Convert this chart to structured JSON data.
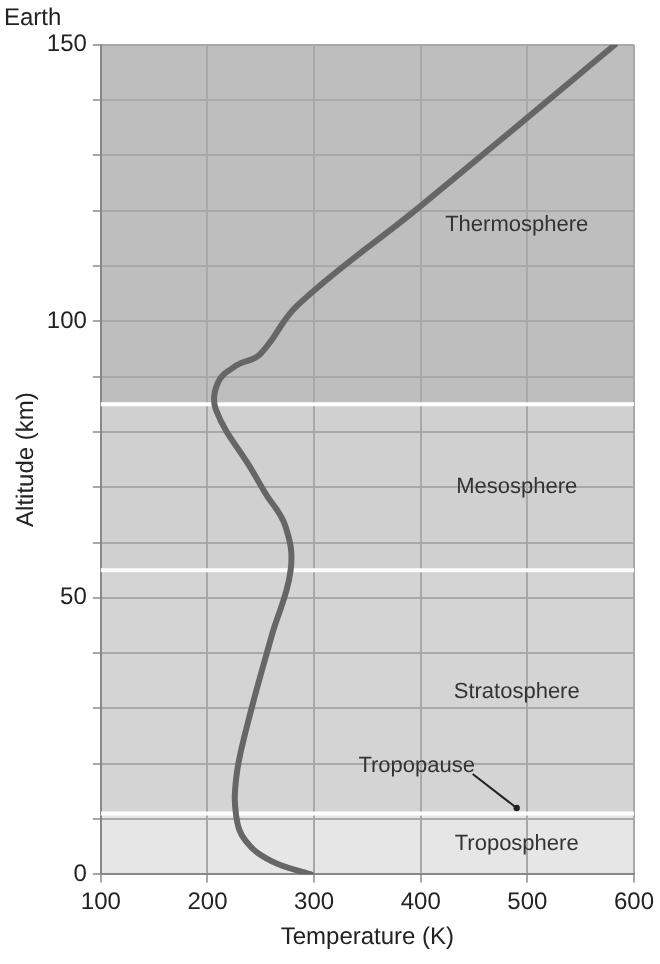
{
  "chart_data": {
    "type": "line",
    "title": "Earth",
    "xlabel": "Temperature (K)",
    "ylabel": "Altitude (km)",
    "x": [
      297,
      260,
      236,
      227,
      227,
      236,
      260,
      278,
      273,
      254,
      242,
      208,
      210,
      227,
      249,
      285,
      401,
      582
    ],
    "series": [
      {
        "color": "#666666",
        "values": [
          0,
          2.4,
          6,
          10.5,
          17.5,
          26,
          43,
          55,
          63,
          69,
          73,
          84,
          89,
          92,
          94,
          103,
          121,
          150
        ]
      }
    ],
    "xlim": [
      100,
      600
    ],
    "xticks": [
      100,
      200,
      300,
      400,
      500,
      600
    ],
    "ylim": [
      0,
      150
    ],
    "yticks": [
      0,
      {
        "value": 10,
        "label": null
      },
      {
        "value": 20,
        "label": null
      },
      {
        "value": 30,
        "label": null
      },
      {
        "value": 40,
        "label": null
      },
      50,
      {
        "value": 60,
        "label": null
      },
      {
        "value": 70,
        "label": null
      },
      {
        "value": 80,
        "label": null
      },
      {
        "value": 90,
        "label": null
      },
      100,
      {
        "value": 110,
        "label": null
      },
      {
        "value": 120,
        "label": null
      },
      {
        "value": 130,
        "label": null
      },
      {
        "value": 140,
        "label": null
      },
      150
    ],
    "bands": [
      {
        "axis": "y",
        "from": 0,
        "to": 11,
        "label": "Troposphere",
        "color": "#e6e6e6"
      },
      {
        "axis": "y",
        "from": 11,
        "to": 55,
        "label": "Stratosphere",
        "color": "#d4d4d4"
      },
      {
        "axis": "y",
        "from": 55,
        "to": 85,
        "label": "Mesosphere",
        "color": "#d0d0d0"
      },
      {
        "axis": "y",
        "from": 85,
        "to": 150,
        "label": "Thermosphere",
        "color": "#bebebe"
      }
    ],
    "ref_lines": [
      {
        "axis": "y",
        "value": 11,
        "color": "#ffffff"
      },
      {
        "axis": "y",
        "value": 55,
        "color": "#ffffff"
      },
      {
        "axis": "y",
        "value": 85,
        "color": "#ffffff"
      }
    ],
    "annotations": [
      {
        "text": "Tropopause",
        "x": 490,
        "y": 12
      }
    ],
    "grid": true,
    "legend": false,
    "marker": "none",
    "line_style": "solid"
  }
}
